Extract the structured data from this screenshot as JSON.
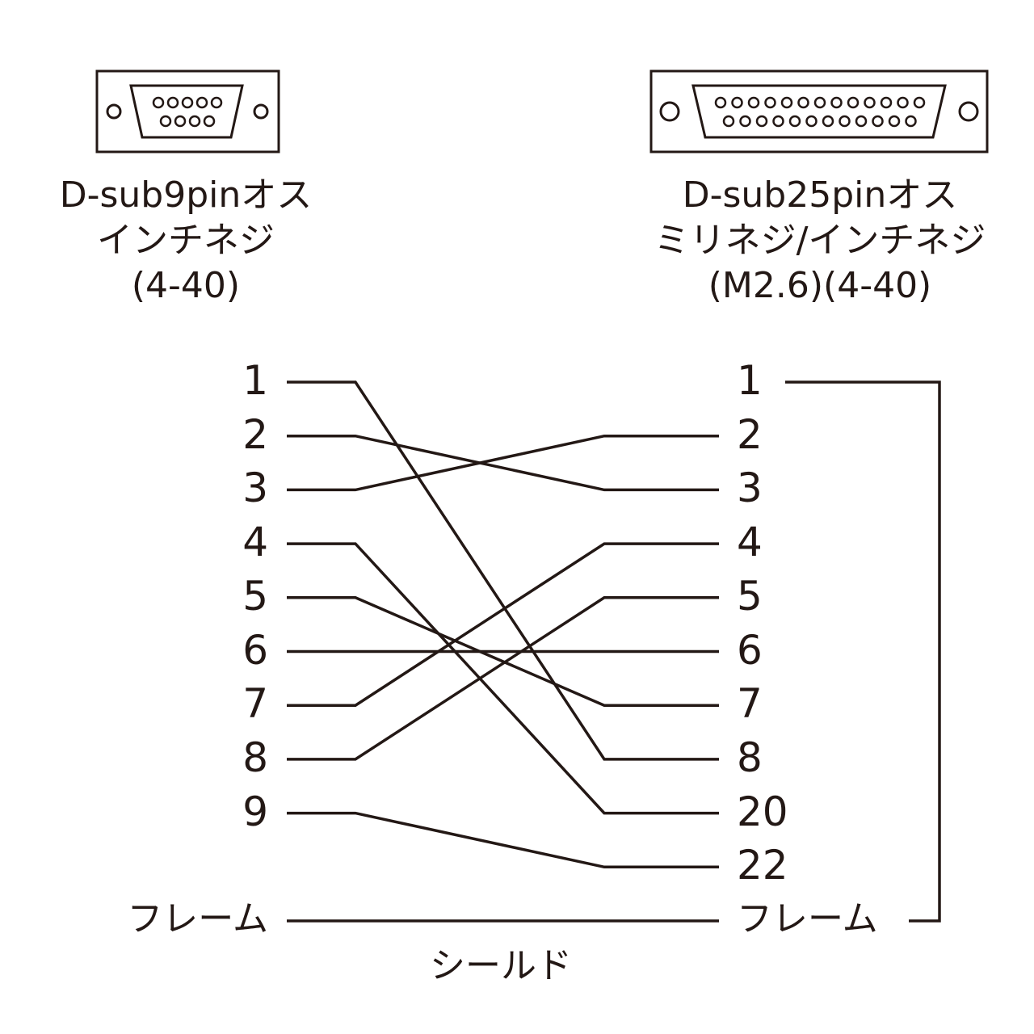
{
  "left_connector": {
    "lines": [
      "D-sub9pinオス",
      "インチネジ",
      "(4-40)"
    ],
    "pins": [
      "1",
      "2",
      "3",
      "4",
      "5",
      "6",
      "7",
      "8",
      "9"
    ]
  },
  "right_connector": {
    "lines": [
      "D-sub25pinオス",
      "ミリネジ/インチネジ",
      "(M2.6)(4-40)"
    ],
    "pins": [
      "1",
      "2",
      "3",
      "4",
      "5",
      "6",
      "7",
      "8",
      "20",
      "22"
    ]
  },
  "frame_label": "フレーム",
  "shield_label": "シールド",
  "wiring": [
    {
      "from": "1",
      "to": "8"
    },
    {
      "from": "2",
      "to": "3"
    },
    {
      "from": "3",
      "to": "2"
    },
    {
      "from": "4",
      "to": "20"
    },
    {
      "from": "5",
      "to": "7"
    },
    {
      "from": "6",
      "to": "6"
    },
    {
      "from": "7",
      "to": "4"
    },
    {
      "from": "8",
      "to": "5"
    },
    {
      "from": "9",
      "to": "22"
    },
    {
      "from": "フレーム",
      "to": "フレーム"
    }
  ],
  "right_bridge": {
    "from": "1",
    "to": "フレーム"
  },
  "line_color": "#231815"
}
